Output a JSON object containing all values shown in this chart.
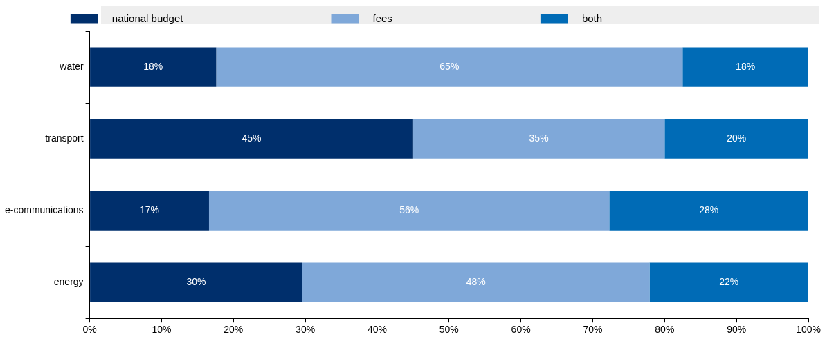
{
  "chart_data": {
    "type": "bar",
    "orientation": "horizontal",
    "stacked": true,
    "legend": "top",
    "categories": [
      "water",
      "transport",
      "e-communications",
      "energy"
    ],
    "series": [
      {
        "name": "national budget",
        "color": "#002f6c",
        "values": [
          17.6,
          45,
          16.6,
          29.6
        ],
        "value_labels": [
          "18%",
          "45%",
          "17%",
          "30%"
        ]
      },
      {
        "name": "fees",
        "color": "#7fa8d9",
        "values": [
          64.9,
          35,
          55.7,
          48.3
        ],
        "value_labels": [
          "65%",
          "35%",
          "56%",
          "48%"
        ]
      },
      {
        "name": "both",
        "color": "#006bb6",
        "values": [
          17.5,
          20,
          27.7,
          22.1
        ],
        "value_labels": [
          "18%",
          "20%",
          "28%",
          "22%"
        ]
      }
    ],
    "xlim": [
      0,
      100
    ],
    "xticks": [
      {
        "value": 0,
        "label": "0%"
      },
      {
        "value": 10,
        "label": "10%"
      },
      {
        "value": 20,
        "label": "20%"
      },
      {
        "value": 30,
        "label": "30%"
      },
      {
        "value": 40,
        "label": "40%"
      },
      {
        "value": 50,
        "label": "50%"
      },
      {
        "value": 60,
        "label": "60%"
      },
      {
        "value": 70,
        "label": "70%"
      },
      {
        "value": 80,
        "label": "80%"
      },
      {
        "value": 90,
        "label": "90%"
      },
      {
        "value": 100,
        "label": "100%"
      }
    ]
  }
}
